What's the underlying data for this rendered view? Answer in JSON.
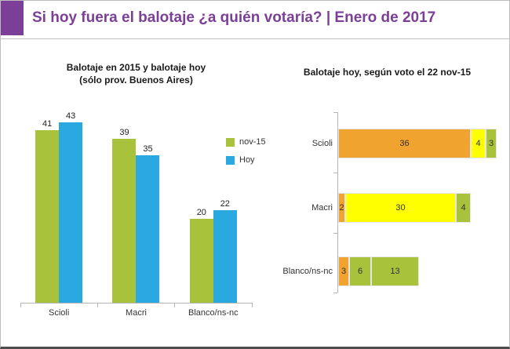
{
  "header": {
    "title": "Si hoy fuera el balotaje ¿a quién votaría? | Enero de 2017",
    "title_color": "#7b3f98",
    "accent_color": "#7b3f98"
  },
  "colors": {
    "nov15_green": "#a9c23c",
    "hoy_blue": "#29a9e0",
    "orange": "#f1a32f",
    "yellow": "#ffff00",
    "green": "#a9c23c",
    "axis_gray": "#b5b5b5"
  },
  "chart_data": [
    {
      "type": "bar",
      "title": "Balotaje en 2015 y balotaje hoy",
      "subtitle": "(sólo prov. Buenos Aires)",
      "categories": [
        "Scioli",
        "Macri",
        "Blanco/ns-nc"
      ],
      "series": [
        {
          "name": "nov-15",
          "color": "#a9c23c",
          "values": [
            41,
            39,
            20
          ]
        },
        {
          "name": "Hoy",
          "color": "#29a9e0",
          "values": [
            43,
            35,
            22
          ]
        }
      ],
      "ylim": [
        0,
        45
      ],
      "grid": false,
      "value_labels": true,
      "legend_position": "right-middle"
    },
    {
      "type": "bar-horizontal-stacked",
      "title": "Balotaje hoy, según voto el 22 nov-15",
      "categories": [
        "Scioli",
        "Macri",
        "Blanco/ns-nc"
      ],
      "xlim": [
        0,
        43
      ],
      "grid": false,
      "value_labels": true,
      "rows": [
        {
          "label": "Scioli",
          "segments": [
            {
              "value": 36,
              "color": "#f1a32f"
            },
            {
              "value": 4,
              "color": "#ffff00"
            },
            {
              "value": 3,
              "color": "#a9c23c"
            }
          ]
        },
        {
          "label": "Macri",
          "segments": [
            {
              "value": 2,
              "color": "#f1a32f"
            },
            {
              "value": 30,
              "color": "#ffff00"
            },
            {
              "value": 4,
              "color": "#a9c23c"
            }
          ]
        },
        {
          "label": "Blanco/ns-nc",
          "segments": [
            {
              "value": 3,
              "color": "#f1a32f"
            },
            {
              "value": 6,
              "color": "#a9c23c"
            },
            {
              "value": 13,
              "color": "#a9c23c"
            }
          ]
        }
      ]
    }
  ]
}
